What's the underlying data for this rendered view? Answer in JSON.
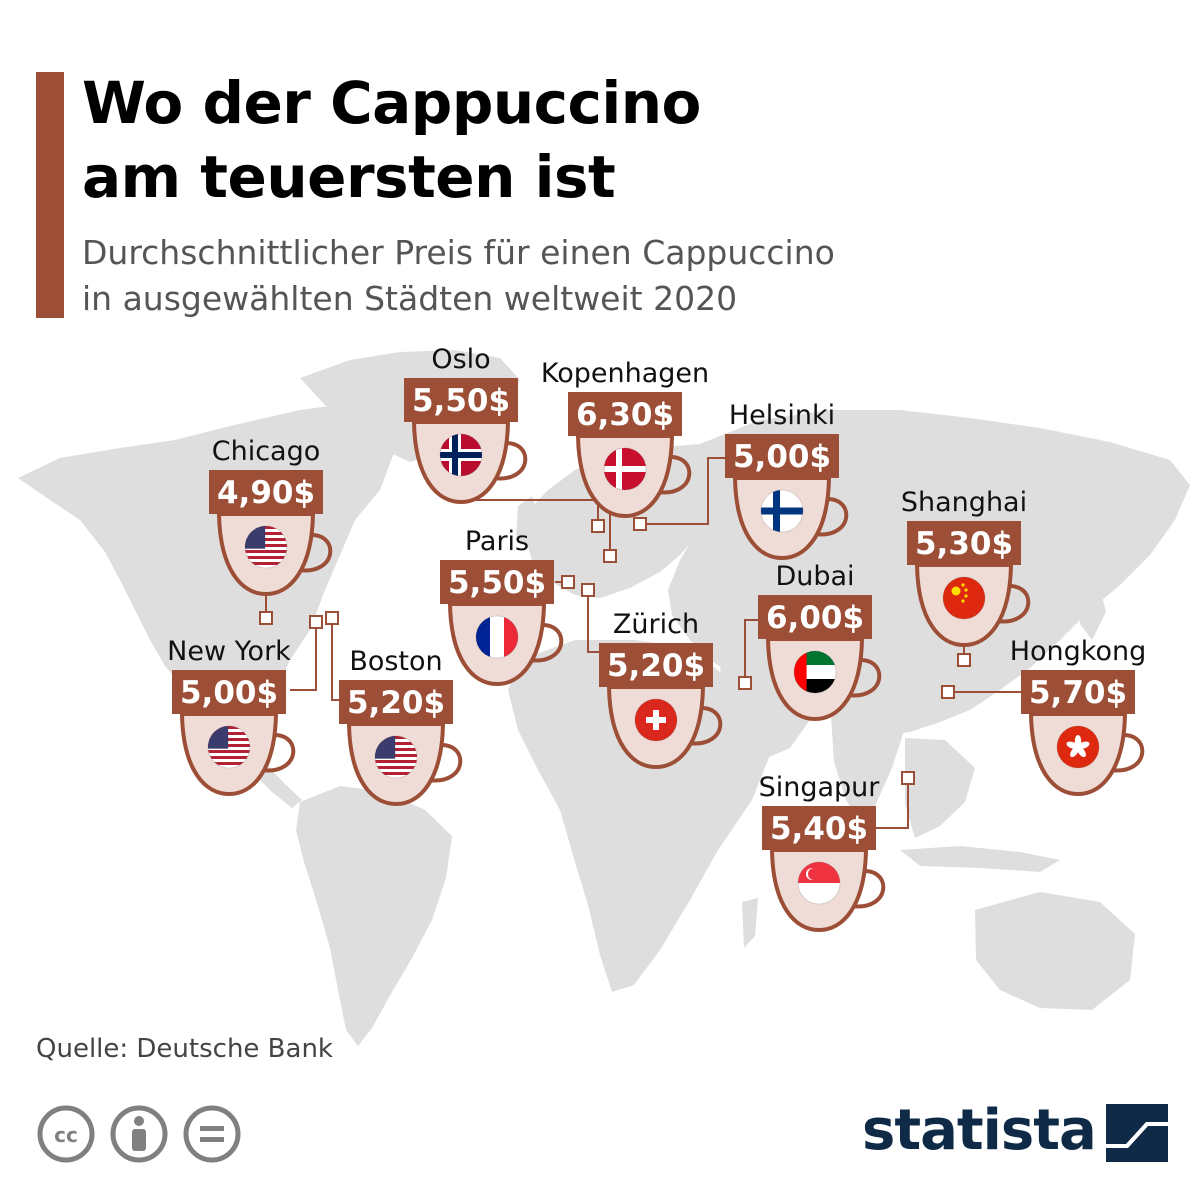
{
  "header": {
    "title_line1": "Wo der Cappuccino",
    "title_line2": "am teuersten ist",
    "subtitle_line1": "Durchschnittlicher Preis für einen Cappuccino",
    "subtitle_line2": "in ausgewählten Städten weltweit 2020"
  },
  "footer": {
    "source": "Quelle: Deutsche Bank",
    "brand": "statista",
    "license_icons": [
      "cc-icon",
      "attribution-icon",
      "no-derivatives-icon"
    ]
  },
  "colors": {
    "accent": "#9c4e36",
    "price_box": "#9c4e36",
    "cup_fill": "#f0dcd6",
    "cup_stroke": "#9c4e36",
    "map": "#dedede",
    "brand": "#0e2a47"
  },
  "chart_data": {
    "type": "map",
    "unit": "$",
    "points": [
      {
        "city": "Oslo",
        "label": "5,50$",
        "value": 5.5,
        "flag": "norway-flag"
      },
      {
        "city": "Kopenhagen",
        "label": "6,30$",
        "value": 6.3,
        "flag": "denmark-flag"
      },
      {
        "city": "Helsinki",
        "label": "5,00$",
        "value": 5.0,
        "flag": "finland-flag"
      },
      {
        "city": "Chicago",
        "label": "4,90$",
        "value": 4.9,
        "flag": "usa-flag"
      },
      {
        "city": "Paris",
        "label": "5,50$",
        "value": 5.5,
        "flag": "france-flag"
      },
      {
        "city": "Shanghai",
        "label": "5,30$",
        "value": 5.3,
        "flag": "china-flag"
      },
      {
        "city": "Dubai",
        "label": "6,00$",
        "value": 6.0,
        "flag": "uae-flag"
      },
      {
        "city": "Zürich",
        "label": "5,20$",
        "value": 5.2,
        "flag": "switzerland-flag"
      },
      {
        "city": "New York",
        "label": "5,00$",
        "value": 5.0,
        "flag": "usa-flag"
      },
      {
        "city": "Boston",
        "label": "5,20$",
        "value": 5.2,
        "flag": "usa-flag"
      },
      {
        "city": "Hongkong",
        "label": "5,70$",
        "value": 5.7,
        "flag": "hongkong-flag"
      },
      {
        "city": "Singapur",
        "label": "5,40$",
        "value": 5.4,
        "flag": "singapore-flag"
      }
    ]
  }
}
